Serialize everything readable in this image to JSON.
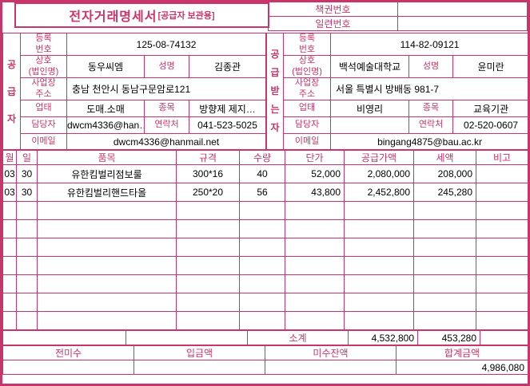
{
  "accent_color": "#c8356b",
  "title": {
    "main": "전자거래명세서",
    "sub": "[공급자 보관용]"
  },
  "doc_numbers": {
    "book_label": "책권번호",
    "book_value": "",
    "serial_label": "일련번호",
    "serial_value": ""
  },
  "parties": {
    "supplier": {
      "role": "공\n급\n자",
      "reg_label": "등록\n번호",
      "reg_value": "125-08-74132",
      "company_label": "상호\n(법인명)",
      "company_value": "동우씨엠",
      "ceo_label": "성명",
      "ceo_value": "김종관",
      "address_label": "사업장\n주소",
      "address_value": "충남 천안시 동남구문암로121",
      "biztype_label": "업태",
      "biztype_value": "도매.소매",
      "bizitem_label": "종목",
      "bizitem_value": "방향제 제지…",
      "manager_label": "담당자",
      "manager_value": "dwcm4336@han…",
      "phone_label": "연락처",
      "phone_value": "041-523-5025",
      "email_label": "이메일",
      "email_value": "dwcm4336@hanmail.net"
    },
    "buyer": {
      "role": "공\n급\n받\n는\n자",
      "reg_label": "등록\n번호",
      "reg_value": "114-82-09121",
      "company_label": "상호\n(법인명)",
      "company_value": "백석예술대학교",
      "ceo_label": "성명",
      "ceo_value": "윤미란",
      "address_label": "사업장\n주소",
      "address_value": "서울 특별시 방배동 981-7",
      "biztype_label": "업태",
      "biztype_value": "비영리",
      "bizitem_label": "종목",
      "bizitem_value": "교육기관",
      "manager_label": "담당자",
      "manager_value": "",
      "phone_label": "연락처",
      "phone_value": "02-520-0607",
      "email_label": "이메일",
      "email_value": "bingang4875@bau.ac.kr"
    }
  },
  "items": {
    "headers": {
      "month": "월",
      "day": "일",
      "name": "품목",
      "spec": "규격",
      "qty": "수량",
      "price": "단가",
      "supply": "공급가액",
      "tax": "세액",
      "note": "비고"
    },
    "rows": [
      {
        "month": "03",
        "day": "30",
        "name": "유한킴벌리점보룰",
        "spec": "300*16",
        "qty": "40",
        "price": "52,000",
        "supply": "2,080,000",
        "tax": "208,000",
        "note": ""
      },
      {
        "month": "03",
        "day": "30",
        "name": "유한킴벌리핸드타올",
        "spec": "250*20",
        "qty": "56",
        "price": "43,800",
        "supply": "2,452,800",
        "tax": "245,280",
        "note": ""
      }
    ],
    "empty_row_count": 7,
    "subtotal": {
      "label": "소계",
      "supply": "4,532,800",
      "tax": "453,280",
      "note": ""
    }
  },
  "summary": {
    "prev_balance_label": "전미수",
    "prev_balance_value": "",
    "deposit_label": "입금액",
    "deposit_value": "",
    "outstanding_label": "미수잔액",
    "outstanding_value": "",
    "total_label": "합계금액",
    "total_value": "4,986,080"
  }
}
